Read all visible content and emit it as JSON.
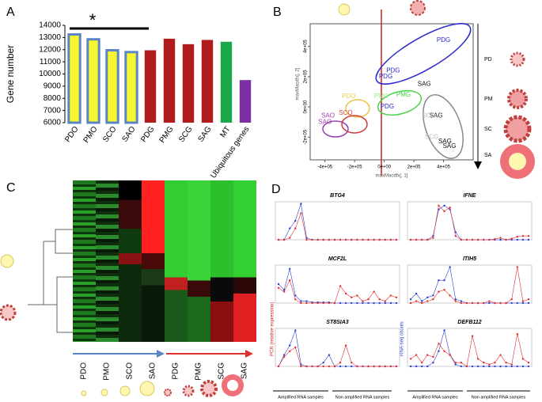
{
  "panels": {
    "labels": [
      "A",
      "B",
      "C",
      "D"
    ]
  },
  "chart_data": [
    {
      "type": "bar",
      "ylabel": "Gene number",
      "annotations": [
        "*"
      ],
      "categories": [
        "PDO",
        "PMO",
        "SCO",
        "SAO",
        "PDG",
        "PMG",
        "SCG",
        "SAG",
        "MT",
        "Ubiquitous genes"
      ],
      "values": [
        13250,
        12850,
        11950,
        11800,
        11950,
        12900,
        12450,
        12800,
        12650,
        9500
      ],
      "colors": [
        "#f5f531",
        "#f5f531",
        "#f5f531",
        "#f5f531",
        "#b11b1b",
        "#b11b1b",
        "#b11b1b",
        "#b11b1b",
        "#1aa84a",
        "#7a2fa3"
      ],
      "edgecolors": [
        "#5b86c4",
        "#5b86c4",
        "#5b86c4",
        "#5b86c4",
        null,
        null,
        null,
        null,
        null,
        null
      ],
      "ylim": [
        6000,
        14000
      ],
      "yticks": [
        6000,
        7000,
        8000,
        9000,
        10000,
        11000,
        12000,
        13000,
        14000
      ]
    },
    {
      "type": "scatter",
      "xlabel": "maxMacdfx[, 1]",
      "ylabel": "maxMacdfx[, 2]",
      "labels": [
        "PDG",
        "PDG",
        "PDG",
        "PMG",
        "PMG",
        "PDG",
        "SAG",
        "SAG",
        "SCG",
        "SCG",
        "SAG",
        "SAG",
        "PDO",
        "SCO",
        "SAO",
        "SAO"
      ],
      "x": [
        400000,
        60000,
        10000,
        130000,
        -20000,
        20000,
        270000,
        350000,
        300000,
        320000,
        410000,
        440000,
        -240000,
        -260000,
        -380000,
        -400000
      ],
      "y": [
        440000,
        240000,
        200000,
        80000,
        70000,
        0,
        150000,
        -60000,
        -60000,
        -200000,
        -230000,
        -260000,
        70000,
        -40000,
        -60000,
        -100000
      ],
      "colors": [
        "#2a2ad0",
        "#2a2ad0",
        "#2a2ad0",
        "#4bd24b",
        "#9be39b",
        "#2a2ad0",
        "#111111",
        "#111111",
        "#bbbbbb",
        "#bbbbbb",
        "#111111",
        "#111111",
        "#e8d04a",
        "#d03a3a",
        "#9a3fb0",
        "#9a3fb0"
      ],
      "xlim": [
        -500000,
        600000
      ],
      "ylim": [
        -350000,
        550000
      ],
      "xticks": [
        {
          "value": -400000,
          "label": "-4e+05"
        },
        {
          "value": -200000,
          "label": "-2e+05"
        },
        {
          "value": 0,
          "label": "0e+00"
        },
        {
          "value": 200000,
          "label": "2e+05"
        },
        {
          "value": 400000,
          "label": "4e+05"
        }
      ],
      "yticks": [
        {
          "value": -200000,
          "label": "-2e+05"
        },
        {
          "value": 0,
          "label": "0e+00"
        },
        {
          "value": 200000,
          "label": "2e+05"
        },
        {
          "value": 400000,
          "label": "4e+05"
        }
      ],
      "stages": [
        "PD",
        "PM",
        "SC",
        "SA"
      ]
    },
    {
      "type": "line",
      "title": "BTG4",
      "ylim": [
        0,
        1
      ],
      "series": [
        {
          "color": "#2f3fd0",
          "values": [
            0,
            0,
            0.3,
            0.5,
            0.95,
            0.05,
            0,
            0,
            0,
            0,
            0,
            0,
            0,
            0,
            0,
            0,
            0,
            0,
            0,
            0,
            0,
            0
          ]
        },
        {
          "color": "#e03030",
          "values": [
            0,
            0,
            0.05,
            0.3,
            0.7,
            0,
            0,
            0,
            0,
            0,
            0,
            0,
            0,
            0,
            0,
            0,
            0,
            0,
            0,
            0,
            0,
            0
          ]
        }
      ]
    },
    {
      "type": "line",
      "title": "IFNE",
      "ylim": [
        0,
        1
      ],
      "series": [
        {
          "color": "#2f3fd0",
          "values": [
            0,
            0,
            0,
            0,
            0.1,
            0.8,
            0.9,
            0.8,
            0.2,
            0,
            0,
            0,
            0,
            0,
            0,
            0,
            0,
            0,
            0,
            0,
            0,
            0
          ]
        },
        {
          "color": "#e03030",
          "values": [
            0,
            0,
            0,
            0,
            0.05,
            0.9,
            0.75,
            0.85,
            0.1,
            0,
            0,
            0,
            0,
            0,
            0,
            0.02,
            0.05,
            0,
            0.03,
            0.08,
            0.1,
            0.1
          ]
        }
      ]
    },
    {
      "type": "line",
      "title": "MCF2L",
      "ylim": [
        0,
        1
      ],
      "series": [
        {
          "color": "#2f3fd0",
          "values": [
            0.5,
            0.35,
            0.9,
            0.2,
            0.05,
            0.05,
            0.02,
            0.02,
            0.02,
            0.02,
            0,
            0,
            0,
            0,
            0,
            0,
            0,
            0,
            0,
            0,
            0,
            0
          ]
        },
        {
          "color": "#e03030",
          "values": [
            0.4,
            0.3,
            0.6,
            0.1,
            0,
            0,
            0,
            0,
            0,
            0,
            0,
            0.45,
            0.25,
            0.15,
            0.2,
            0.05,
            0.1,
            0.3,
            0.1,
            0.05,
            0.2,
            0.15
          ]
        }
      ]
    },
    {
      "type": "line",
      "title": "ITIH5",
      "ylim": [
        0,
        1
      ],
      "series": [
        {
          "color": "#2f3fd0",
          "values": [
            0.1,
            0.25,
            0.05,
            0.15,
            0.2,
            0.6,
            0.6,
            0.95,
            0.1,
            0.05,
            0,
            0,
            0,
            0,
            0,
            0,
            0,
            0,
            0,
            0,
            0,
            0
          ]
        },
        {
          "color": "#e03030",
          "values": [
            0,
            0.05,
            0,
            0.05,
            0.1,
            0.3,
            0.35,
            0.2,
            0.05,
            0,
            0,
            0,
            0,
            0,
            0.05,
            0,
            0,
            0,
            0.1,
            0.95,
            0.05,
            0.1
          ]
        }
      ]
    },
    {
      "type": "line",
      "title": "ST8SIA3",
      "ylim": [
        0,
        1
      ],
      "series": [
        {
          "color": "#2f3fd0",
          "values": [
            0,
            0.3,
            0.55,
            0.95,
            0.05,
            0,
            0,
            0,
            0.1,
            0.3,
            0,
            0,
            0,
            0,
            0,
            0,
            0,
            0,
            0,
            0,
            0,
            0
          ]
        },
        {
          "color": "#e03030",
          "values": [
            0,
            0.25,
            0.4,
            0.5,
            0,
            0,
            0,
            0,
            0,
            0,
            0,
            0.1,
            0.55,
            0.1,
            0,
            0,
            0,
            0,
            0,
            0,
            0,
            0
          ]
        }
      ]
    },
    {
      "type": "line",
      "title": "DEFB112",
      "ylim": [
        0,
        1
      ],
      "series": [
        {
          "color": "#2f3fd0",
          "values": [
            0,
            0,
            0,
            0,
            0.1,
            0.4,
            0.95,
            0.3,
            0.05,
            0,
            0,
            0,
            0,
            0,
            0,
            0,
            0,
            0,
            0,
            0,
            0,
            0
          ]
        },
        {
          "color": "#e03030",
          "values": [
            0.2,
            0.3,
            0.1,
            0.3,
            0.25,
            0.6,
            0.4,
            0.3,
            0.1,
            0.1,
            0,
            0.8,
            0.2,
            0.1,
            0.05,
            0.1,
            0.3,
            0.1,
            0.05,
            0.85,
            0.2,
            0.1
          ]
        }
      ]
    }
  ],
  "heatmap": {
    "columns": [
      "PDO",
      "PMO",
      "SCO",
      "SAO",
      "PDG",
      "PMG",
      "SCG",
      "SAG"
    ]
  },
  "panel_d": {
    "left_axis": "PCR (relative expression)",
    "right_axis": "RNA-seq counts",
    "groups": [
      "Amplified RNA samples",
      "Non amplified RNA samples",
      "Amplified RNA samples",
      "Non amplified RNA samples"
    ]
  }
}
